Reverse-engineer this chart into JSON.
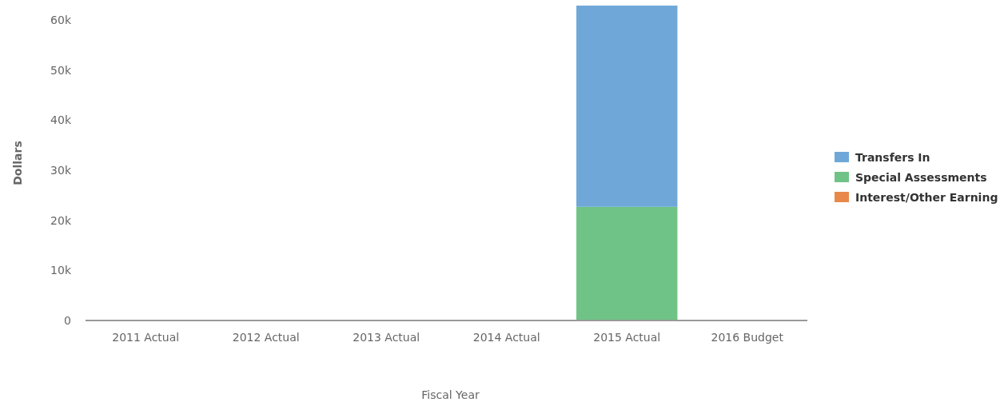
{
  "chart_data": {
    "type": "bar",
    "stacked": true,
    "xlabel": "Fiscal Year",
    "ylabel": "Dollars",
    "categories": [
      "2011 Actual",
      "2012 Actual",
      "2013 Actual",
      "2014 Actual",
      "2015 Actual",
      "2016 Budget"
    ],
    "series": [
      {
        "name": "Interest/Other Earning",
        "color": "#e8894a",
        "values": [
          0,
          0,
          0,
          0,
          0,
          0
        ]
      },
      {
        "name": "Special Assessments",
        "color": "#6fc386",
        "values": [
          0,
          0,
          0,
          0,
          22700,
          0
        ]
      },
      {
        "name": "Transfers In",
        "color": "#6fa8d8",
        "values": [
          0,
          0,
          0,
          0,
          40200,
          0
        ]
      }
    ],
    "ylim": [
      0,
      62900
    ],
    "yticks": [
      {
        "value": 0,
        "label": "0"
      },
      {
        "value": 10000,
        "label": "10k"
      },
      {
        "value": 20000,
        "label": "20k"
      },
      {
        "value": 30000,
        "label": "30k"
      },
      {
        "value": 40000,
        "label": "40k"
      },
      {
        "value": 50000,
        "label": "50k"
      },
      {
        "value": 60000,
        "label": "60k"
      }
    ],
    "legend": "right"
  }
}
